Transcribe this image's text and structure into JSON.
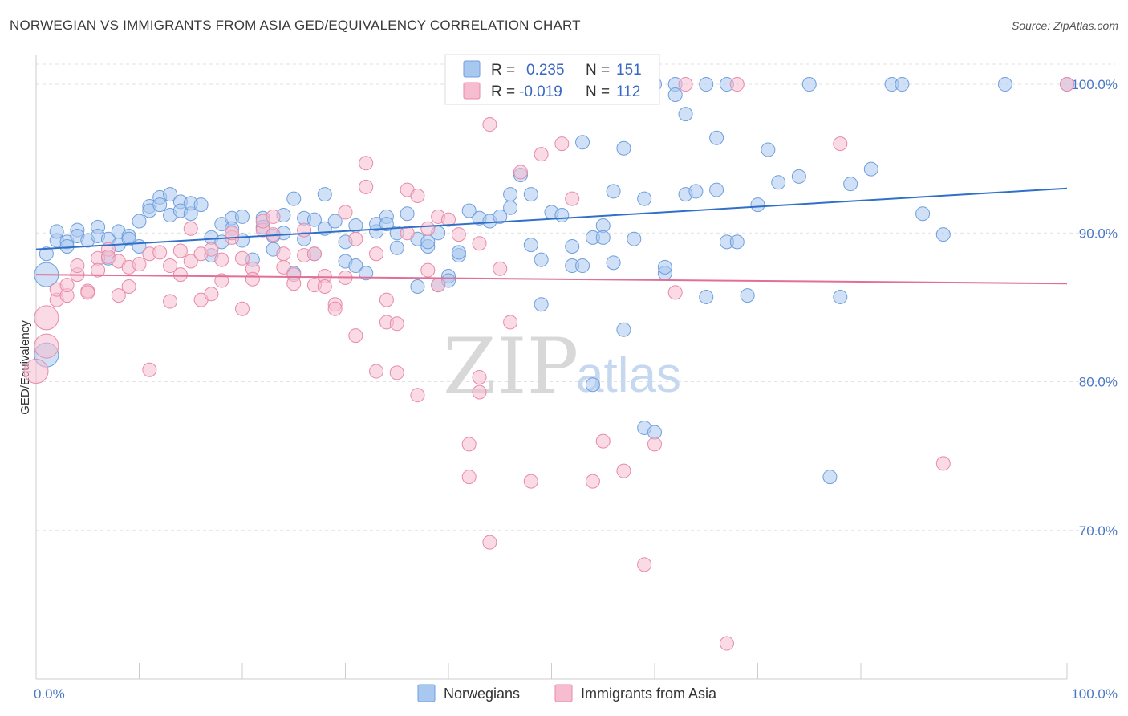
{
  "title": "NORWEGIAN VS IMMIGRANTS FROM ASIA GED/EQUIVALENCY CORRELATION CHART",
  "source": "Source: ZipAtlas.com",
  "watermark": {
    "zip": "ZIP",
    "atlas": "atlas"
  },
  "legend": {
    "rows": [
      {
        "r_label": "R =",
        "r_value": "0.235",
        "n_label": "N =",
        "n_value": "151",
        "color": "#a9c8f0",
        "stroke": "#6f9fdc"
      },
      {
        "r_label": "R =",
        "r_value": "-0.019",
        "n_label": "N =",
        "n_value": "112",
        "color": "#f6bdd0",
        "stroke": "#e88aa8"
      }
    ]
  },
  "bottom_legend": [
    "Norwegians",
    "Immigrants from Asia"
  ],
  "chart_data": {
    "type": "scatter",
    "title": "NORWEGIAN VS IMMIGRANTS FROM ASIA GED/EQUIVALENCY CORRELATION CHART",
    "xlabel": "",
    "ylabel": "GED/Equivalency",
    "xlim": [
      0,
      100
    ],
    "ylim": [
      60,
      102
    ],
    "x_tick_labels": [
      "0.0%",
      "100.0%"
    ],
    "y_ticks": [
      70,
      80,
      90,
      100
    ],
    "y_tick_labels": [
      "70.0%",
      "80.0%",
      "90.0%",
      "100.0%"
    ],
    "grid": true,
    "legend_position": "top-center",
    "series": [
      {
        "name": "Norwegians",
        "color": "#a9c8f0",
        "stroke": "#6f9fdc",
        "trend": {
          "x": [
            0,
            100
          ],
          "y": [
            88.9,
            93.0
          ],
          "color": "#3070c8"
        },
        "points": [
          [
            1,
            88.6
          ],
          [
            1,
            87.2
          ],
          [
            1,
            81.8
          ],
          [
            2,
            89.5
          ],
          [
            2,
            90.1
          ],
          [
            3,
            89.4
          ],
          [
            3,
            89.1
          ],
          [
            4,
            90.2
          ],
          [
            4,
            89.8
          ],
          [
            5,
            89.5
          ],
          [
            6,
            90.4
          ],
          [
            6,
            89.8
          ],
          [
            7,
            89.6
          ],
          [
            7,
            88.3
          ],
          [
            8,
            89.2
          ],
          [
            8,
            90.1
          ],
          [
            9,
            89.8
          ],
          [
            9,
            89.6
          ],
          [
            10,
            89.1
          ],
          [
            10,
            90.8
          ],
          [
            11,
            91.8
          ],
          [
            11,
            91.5
          ],
          [
            12,
            92.4
          ],
          [
            12,
            91.9
          ],
          [
            13,
            92.6
          ],
          [
            13,
            91.2
          ],
          [
            14,
            92.1
          ],
          [
            14,
            91.5
          ],
          [
            15,
            91.3
          ],
          [
            15,
            92.0
          ],
          [
            16,
            91.9
          ],
          [
            17,
            89.7
          ],
          [
            17,
            88.5
          ],
          [
            18,
            89.4
          ],
          [
            18,
            90.6
          ],
          [
            19,
            91.0
          ],
          [
            19,
            90.3
          ],
          [
            20,
            91.1
          ],
          [
            20,
            89.5
          ],
          [
            21,
            88.2
          ],
          [
            22,
            91.0
          ],
          [
            22,
            90.4
          ],
          [
            23,
            89.8
          ],
          [
            23,
            88.9
          ],
          [
            24,
            91.2
          ],
          [
            24,
            90.0
          ],
          [
            25,
            92.3
          ],
          [
            25,
            87.3
          ],
          [
            26,
            91.0
          ],
          [
            26,
            89.6
          ],
          [
            27,
            90.9
          ],
          [
            27,
            88.6
          ],
          [
            28,
            90.3
          ],
          [
            28,
            92.6
          ],
          [
            29,
            90.8
          ],
          [
            30,
            89.4
          ],
          [
            30,
            88.1
          ],
          [
            31,
            90.5
          ],
          [
            31,
            87.8
          ],
          [
            32,
            87.3
          ],
          [
            33,
            90.1
          ],
          [
            33,
            90.6
          ],
          [
            34,
            91.1
          ],
          [
            34,
            90.6
          ],
          [
            35,
            90.0
          ],
          [
            35,
            89.0
          ],
          [
            36,
            91.3
          ],
          [
            37,
            86.4
          ],
          [
            37,
            89.6
          ],
          [
            38,
            89.1
          ],
          [
            38,
            89.4
          ],
          [
            39,
            90.0
          ],
          [
            39,
            86.5
          ],
          [
            40,
            87.1
          ],
          [
            40,
            86.8
          ],
          [
            41,
            88.5
          ],
          [
            41,
            88.7
          ],
          [
            42,
            91.5
          ],
          [
            43,
            91.0
          ],
          [
            44,
            90.8
          ],
          [
            45,
            91.1
          ],
          [
            46,
            91.7
          ],
          [
            46,
            92.6
          ],
          [
            47,
            93.9
          ],
          [
            48,
            92.6
          ],
          [
            48,
            89.2
          ],
          [
            49,
            85.2
          ],
          [
            49,
            88.2
          ],
          [
            50,
            91.4
          ],
          [
            51,
            91.2
          ],
          [
            52,
            87.8
          ],
          [
            52,
            89.1
          ],
          [
            53,
            96.1
          ],
          [
            53,
            87.8
          ],
          [
            54,
            79.8
          ],
          [
            54,
            89.7
          ],
          [
            55,
            90.5
          ],
          [
            55,
            89.7
          ],
          [
            56,
            92.8
          ],
          [
            56,
            88.0
          ],
          [
            57,
            83.5
          ],
          [
            57,
            95.7
          ],
          [
            58,
            89.6
          ],
          [
            59,
            76.9
          ],
          [
            59,
            92.3
          ],
          [
            60,
            76.6
          ],
          [
            60,
            100.0
          ],
          [
            61,
            87.3
          ],
          [
            61,
            87.7
          ],
          [
            62,
            100.0
          ],
          [
            62,
            99.3
          ],
          [
            63,
            92.6
          ],
          [
            63,
            98.0
          ],
          [
            64,
            92.8
          ],
          [
            65,
            85.7
          ],
          [
            65,
            100.0
          ],
          [
            66,
            96.4
          ],
          [
            66,
            92.9
          ],
          [
            67,
            100.0
          ],
          [
            67,
            89.4
          ],
          [
            68,
            89.4
          ],
          [
            69,
            85.8
          ],
          [
            70,
            91.9
          ],
          [
            71,
            95.6
          ],
          [
            72,
            93.4
          ],
          [
            74,
            93.8
          ],
          [
            75,
            100.0
          ],
          [
            77,
            73.6
          ],
          [
            78,
            85.7
          ],
          [
            79,
            93.3
          ],
          [
            81,
            94.3
          ],
          [
            83,
            100.0
          ],
          [
            84,
            100.0
          ],
          [
            86,
            91.3
          ],
          [
            88,
            89.9
          ],
          [
            94,
            100.0
          ],
          [
            100,
            100.0
          ]
        ]
      },
      {
        "name": "Immigrants from Asia",
        "color": "#f6bdd0",
        "stroke": "#e88aa8",
        "trend": {
          "x": [
            0,
            100
          ],
          "y": [
            87.2,
            86.6
          ],
          "color": "#e07098"
        },
        "points": [
          [
            0,
            80.7
          ],
          [
            1,
            82.4
          ],
          [
            1,
            84.3
          ],
          [
            2,
            85.5
          ],
          [
            2,
            86.2
          ],
          [
            3,
            85.8
          ],
          [
            3,
            86.5
          ],
          [
            4,
            87.2
          ],
          [
            4,
            87.8
          ],
          [
            5,
            86.1
          ],
          [
            5,
            86.0
          ],
          [
            6,
            88.3
          ],
          [
            6,
            87.5
          ],
          [
            7,
            88.9
          ],
          [
            7,
            88.4
          ],
          [
            8,
            85.8
          ],
          [
            8,
            88.1
          ],
          [
            9,
            87.7
          ],
          [
            9,
            86.4
          ],
          [
            10,
            87.9
          ],
          [
            11,
            80.8
          ],
          [
            11,
            88.6
          ],
          [
            12,
            88.7
          ],
          [
            13,
            87.8
          ],
          [
            13,
            85.4
          ],
          [
            14,
            88.8
          ],
          [
            14,
            87.2
          ],
          [
            15,
            88.1
          ],
          [
            15,
            90.3
          ],
          [
            16,
            85.5
          ],
          [
            16,
            88.6
          ],
          [
            17,
            88.9
          ],
          [
            17,
            85.9
          ],
          [
            18,
            88.2
          ],
          [
            18,
            86.8
          ],
          [
            19,
            89.7
          ],
          [
            19,
            90.0
          ],
          [
            20,
            88.3
          ],
          [
            20,
            84.9
          ],
          [
            21,
            87.6
          ],
          [
            21,
            86.9
          ],
          [
            22,
            90.2
          ],
          [
            22,
            90.8
          ],
          [
            23,
            91.1
          ],
          [
            23,
            89.9
          ],
          [
            24,
            88.6
          ],
          [
            24,
            87.7
          ],
          [
            25,
            87.2
          ],
          [
            25,
            86.6
          ],
          [
            26,
            90.2
          ],
          [
            26,
            88.5
          ],
          [
            27,
            88.6
          ],
          [
            27,
            86.5
          ],
          [
            28,
            87.1
          ],
          [
            28,
            86.4
          ],
          [
            29,
            85.2
          ],
          [
            29,
            84.9
          ],
          [
            30,
            87.0
          ],
          [
            30,
            91.4
          ],
          [
            31,
            83.1
          ],
          [
            31,
            89.6
          ],
          [
            32,
            94.7
          ],
          [
            32,
            93.1
          ],
          [
            33,
            88.6
          ],
          [
            33,
            80.7
          ],
          [
            34,
            85.5
          ],
          [
            34,
            84.0
          ],
          [
            35,
            80.6
          ],
          [
            35,
            83.9
          ],
          [
            36,
            90.0
          ],
          [
            36,
            92.9
          ],
          [
            37,
            79.1
          ],
          [
            37,
            92.5
          ],
          [
            38,
            87.5
          ],
          [
            38,
            90.3
          ],
          [
            39,
            86.5
          ],
          [
            39,
            91.1
          ],
          [
            40,
            90.9
          ],
          [
            41,
            89.9
          ],
          [
            42,
            75.8
          ],
          [
            42,
            73.6
          ],
          [
            43,
            79.3
          ],
          [
            43,
            80.3
          ],
          [
            43,
            89.3
          ],
          [
            44,
            69.2
          ],
          [
            44,
            97.3
          ],
          [
            45,
            87.6
          ],
          [
            46,
            84.0
          ],
          [
            47,
            94.1
          ],
          [
            48,
            73.3
          ],
          [
            49,
            95.3
          ],
          [
            51,
            96.0
          ],
          [
            52,
            92.3
          ],
          [
            53,
            100.0
          ],
          [
            54,
            73.3
          ],
          [
            55,
            76.0
          ],
          [
            57,
            74.0
          ],
          [
            59,
            67.7
          ],
          [
            60,
            75.8
          ],
          [
            62,
            86.0
          ],
          [
            63,
            100.0
          ],
          [
            67,
            62.4
          ],
          [
            68,
            100.0
          ],
          [
            78,
            96.0
          ],
          [
            88,
            74.5
          ],
          [
            100,
            100.0
          ]
        ]
      }
    ]
  }
}
